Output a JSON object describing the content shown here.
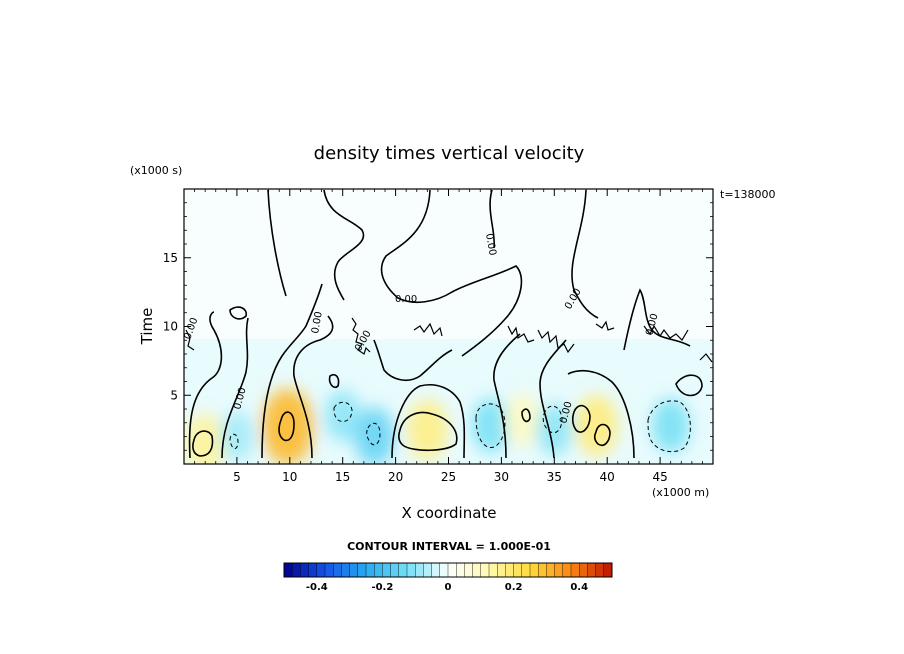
{
  "chart_data": {
    "type": "heatmap",
    "title": "density times vertical velocity",
    "xlabel": "X coordinate",
    "ylabel": "Time",
    "x_units": "(x1000 m)",
    "y_units": "(x1000 s)",
    "time_label": "t=138000",
    "xlim": [
      0,
      50
    ],
    "ylim": [
      0,
      20
    ],
    "x_ticks": [
      "5",
      "10",
      "15",
      "20",
      "25",
      "30",
      "35",
      "40",
      "45"
    ],
    "y_ticks": [
      "5",
      "10",
      "15"
    ],
    "contour_interval_text": "CONTOUR INTERVAL = 1.000E-01",
    "contour_label": "0.00",
    "colorbar": {
      "range": [
        -0.5,
        0.5
      ],
      "tick_labels": [
        "-0.4",
        "-0.2",
        "0",
        "0.2",
        "0.4"
      ],
      "tick_values": [
        -0.4,
        -0.2,
        0,
        0.2,
        0.4
      ]
    },
    "features": [
      {
        "x": 2,
        "y": 1.5,
        "value": 0.15
      },
      {
        "x": 5,
        "y": 2,
        "value": -0.08
      },
      {
        "x": 9.8,
        "y": 2.7,
        "value": 0.3
      },
      {
        "x": 15,
        "y": 3.5,
        "value": -0.1
      },
      {
        "x": 18,
        "y": 2,
        "value": -0.15
      },
      {
        "x": 23,
        "y": 2.5,
        "value": 0.17
      },
      {
        "x": 29,
        "y": 2.8,
        "value": -0.12
      },
      {
        "x": 32,
        "y": 3.2,
        "value": 0.1
      },
      {
        "x": 35,
        "y": 2.5,
        "value": -0.1
      },
      {
        "x": 39,
        "y": 2.8,
        "value": 0.18
      },
      {
        "x": 46,
        "y": 2.8,
        "value": -0.12
      }
    ]
  }
}
